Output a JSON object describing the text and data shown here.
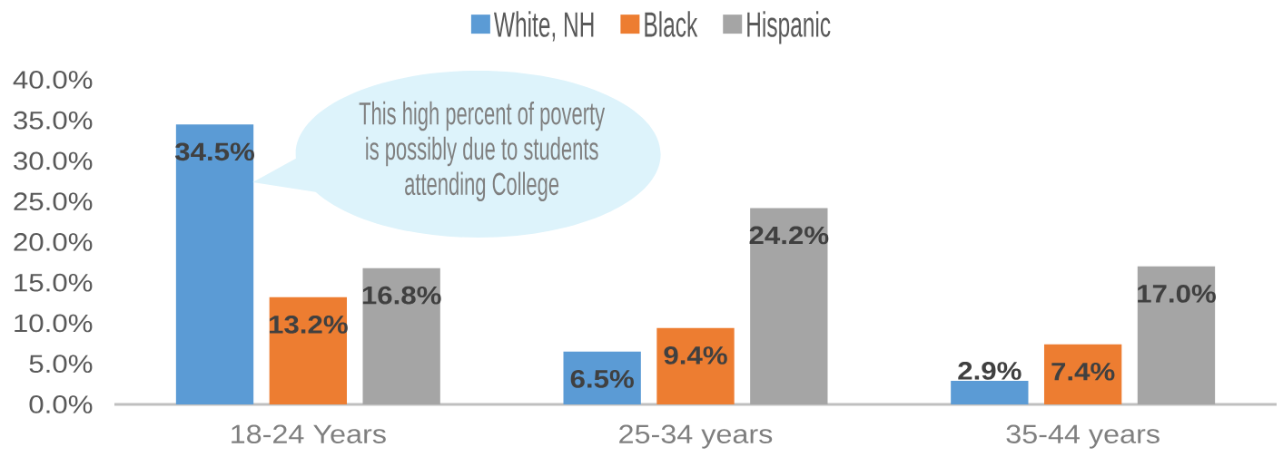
{
  "chart_data": {
    "type": "bar",
    "categories": [
      "18-24 Years",
      "25-34 years",
      "35-44 years"
    ],
    "series": [
      {
        "name": "White, NH",
        "color": "#5b9bd5",
        "values": [
          34.5,
          6.5,
          2.9
        ],
        "value_labels": [
          "34.5%",
          "6.5%",
          "2.9%"
        ]
      },
      {
        "name": "Black",
        "color": "#ed7d31",
        "values": [
          13.2,
          9.4,
          7.4
        ],
        "value_labels": [
          "13.2%",
          "9.4%",
          "7.4%"
        ]
      },
      {
        "name": "Hispanic",
        "color": "#a5a5a5",
        "values": [
          16.8,
          24.2,
          17.0
        ],
        "value_labels": [
          "16.8%",
          "24.2%",
          "17.0%"
        ]
      }
    ],
    "ylim": [
      0,
      40
    ],
    "yticks": [
      {
        "value": 0,
        "label": "0.0%"
      },
      {
        "value": 5,
        "label": "5.0%"
      },
      {
        "value": 10,
        "label": "10.0%"
      },
      {
        "value": 15,
        "label": "15.0%"
      },
      {
        "value": 20,
        "label": "20.0%"
      },
      {
        "value": 25,
        "label": "25.0%"
      },
      {
        "value": 30,
        "label": "30.0%"
      },
      {
        "value": 35,
        "label": "35.0%"
      },
      {
        "value": 40,
        "label": "40.0%"
      }
    ],
    "legend": "top",
    "annotations": [
      "This high percent of poverty is possibly due to students attending College"
    ]
  }
}
